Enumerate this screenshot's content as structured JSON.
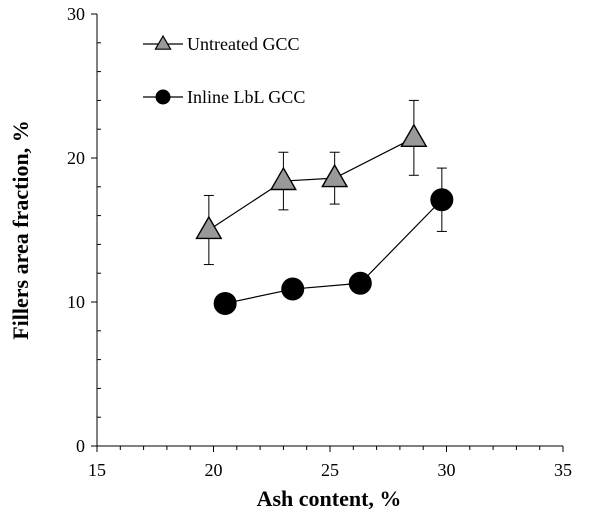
{
  "chart_data": {
    "type": "scatter",
    "title": "",
    "xlabel": "Ash content, %",
    "ylabel": "Fillers area fraction, %",
    "xlim": [
      15,
      35
    ],
    "ylim": [
      0,
      30
    ],
    "x_ticks": [
      15,
      20,
      25,
      30,
      35
    ],
    "y_ticks": [
      0,
      10,
      20,
      30
    ],
    "x_tick_labels": [
      "15",
      "20",
      "25",
      "30",
      "35"
    ],
    "y_tick_labels": [
      "0",
      "10",
      "20",
      "30"
    ],
    "grid": false,
    "legend_position": "top-left",
    "series": [
      {
        "name": "Untreated GCC",
        "marker": "triangle",
        "color": "#999999",
        "line": true,
        "x": [
          19.8,
          23.0,
          25.2,
          28.6
        ],
        "y": [
          15.0,
          18.4,
          18.6,
          21.4
        ],
        "error": [
          2.4,
          2.0,
          1.8,
          2.6
        ]
      },
      {
        "name": "Inline LbL GCC",
        "marker": "circle",
        "color": "#000000",
        "line": true,
        "x": [
          20.5,
          23.4,
          26.3,
          29.8
        ],
        "y": [
          9.9,
          10.9,
          11.3,
          17.1
        ],
        "error": [
          0,
          0.6,
          0,
          2.2
        ]
      }
    ]
  }
}
